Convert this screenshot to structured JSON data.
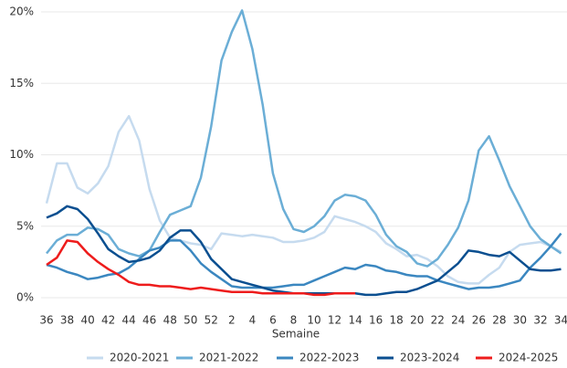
{
  "chart_data": {
    "type": "line",
    "x_label": "Semaine",
    "categories": [
      "36",
      null,
      "38",
      null,
      "40",
      null,
      "42",
      null,
      "44",
      null,
      "46",
      null,
      "48",
      null,
      "50",
      null,
      "52",
      null,
      "2",
      null,
      "4",
      null,
      "6",
      null,
      "8",
      null,
      "10",
      null,
      "12",
      null,
      "14",
      null,
      "16",
      null,
      "18",
      null,
      "20",
      null,
      "22",
      null,
      "24",
      null,
      "26",
      null,
      "28",
      null,
      "30",
      null,
      "32",
      null,
      "34"
    ],
    "ylim": [
      0,
      20.5
    ],
    "yticks": [
      {
        "value": 0,
        "label": "0%"
      },
      {
        "value": 5,
        "label": "5%"
      },
      {
        "value": 10,
        "label": "10%"
      },
      {
        "value": 15,
        "label": "15%"
      },
      {
        "value": 20,
        "label": "20%"
      }
    ],
    "grid": true,
    "legend": "bottom",
    "series": [
      {
        "name": "2020-2021",
        "color": "#c6dbef",
        "values": [
          6.6,
          9.4,
          9.4,
          7.7,
          7.3,
          8.0,
          9.2,
          11.6,
          12.7,
          11.0,
          7.6,
          5.4,
          4.2,
          4.0,
          3.8,
          3.7,
          3.4,
          4.5,
          4.4,
          4.3,
          4.4,
          4.3,
          4.2,
          3.9,
          3.9,
          4.0,
          4.2,
          4.6,
          5.7,
          5.5,
          5.3,
          5.0,
          4.6,
          3.8,
          3.4,
          2.9,
          3.0,
          2.7,
          2.2,
          1.5,
          1.1,
          1.0,
          1.0,
          1.6,
          2.1,
          3.2,
          3.7,
          3.8,
          3.9,
          3.6,
          3.2
        ]
      },
      {
        "name": "2021-2022",
        "color": "#6baed6",
        "values": [
          3.1,
          4.0,
          4.4,
          4.4,
          4.9,
          4.8,
          4.4,
          3.4,
          3.1,
          2.9,
          3.3,
          4.6,
          5.8,
          6.1,
          6.4,
          8.4,
          12.0,
          16.6,
          18.6,
          20.1,
          17.4,
          13.5,
          8.7,
          6.2,
          4.8,
          4.6,
          5.0,
          5.7,
          6.8,
          7.2,
          7.1,
          6.8,
          5.8,
          4.4,
          3.6,
          3.2,
          2.4,
          2.2,
          2.7,
          3.7,
          4.9,
          6.8,
          10.3,
          11.3,
          9.6,
          7.8,
          6.4,
          5.0,
          4.1,
          3.6,
          3.1
        ]
      },
      {
        "name": "2022-2023",
        "color": "#3b87c0",
        "values": [
          2.3,
          2.1,
          1.8,
          1.6,
          1.3,
          1.4,
          1.6,
          1.7,
          2.1,
          2.7,
          3.3,
          3.5,
          4.0,
          4.0,
          3.3,
          2.4,
          1.8,
          1.3,
          0.8,
          0.7,
          0.7,
          0.7,
          0.7,
          0.8,
          0.9,
          0.9,
          1.2,
          1.5,
          1.8,
          2.1,
          2.0,
          2.3,
          2.2,
          1.9,
          1.8,
          1.6,
          1.5,
          1.5,
          1.2,
          1.0,
          0.8,
          0.6,
          0.7,
          0.7,
          0.8,
          1.0,
          1.2,
          2.1,
          2.8,
          3.6,
          4.5
        ]
      },
      {
        "name": "2023-2024",
        "color": "#0b4f90",
        "values": [
          5.6,
          5.9,
          6.4,
          6.2,
          5.5,
          4.5,
          3.4,
          2.9,
          2.5,
          2.6,
          2.8,
          3.3,
          4.2,
          4.7,
          4.7,
          3.9,
          2.7,
          2.0,
          1.3,
          1.1,
          0.9,
          0.7,
          0.5,
          0.4,
          0.3,
          0.3,
          0.3,
          0.3,
          0.3,
          0.3,
          0.3,
          0.2,
          0.2,
          0.3,
          0.4,
          0.4,
          0.6,
          0.9,
          1.2,
          1.8,
          2.4,
          3.3,
          3.2,
          3.0,
          2.9,
          3.2,
          2.6,
          2.0,
          1.9,
          1.9,
          2.0
        ]
      },
      {
        "name": "2024-2025",
        "color": "#ee1c1c",
        "values": [
          2.3,
          2.8,
          4.0,
          3.9,
          3.1,
          2.5,
          2.0,
          1.6,
          1.1,
          0.9,
          0.9,
          0.8,
          0.8,
          0.7,
          0.6,
          0.7,
          0.6,
          0.5,
          0.4,
          0.4,
          0.4,
          0.3,
          0.3,
          0.3,
          0.3,
          0.3,
          0.2,
          0.2,
          0.3,
          0.3,
          0.3,
          null,
          null,
          null,
          null,
          null,
          null,
          null,
          null,
          null,
          null,
          null,
          null,
          null,
          null,
          null,
          null,
          null,
          null,
          null,
          null
        ]
      }
    ]
  }
}
